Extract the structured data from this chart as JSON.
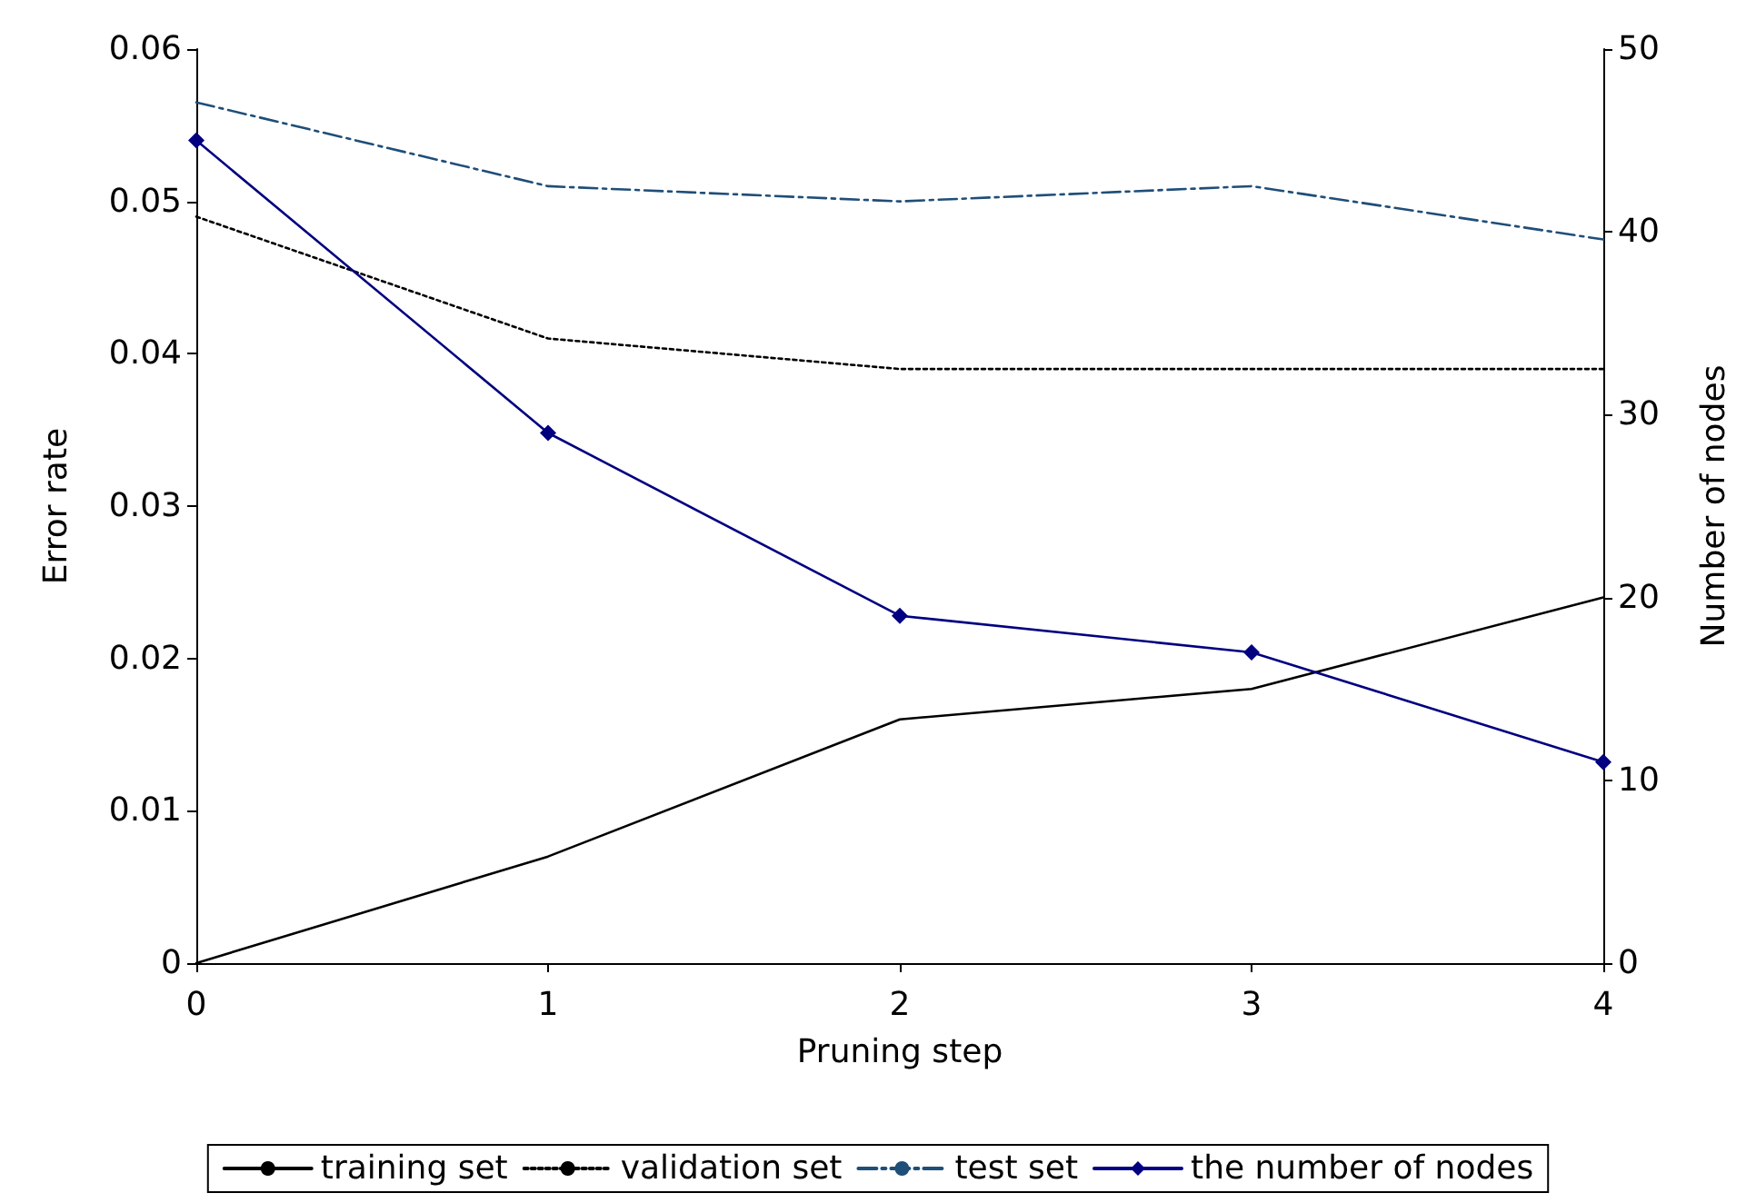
{
  "chart_data": {
    "type": "line",
    "xlabel": "Pruning step",
    "ylabel": "Error rate",
    "y2label": "Number of nodes",
    "x": [
      0,
      1,
      2,
      3,
      4
    ],
    "xlim": [
      0,
      4
    ],
    "xticks": [
      0,
      1,
      2,
      3,
      4
    ],
    "ylim": [
      0,
      0.06
    ],
    "yticks": [
      0,
      0.01,
      0.02,
      0.03,
      0.04,
      0.05,
      0.06
    ],
    "y2lim": [
      0,
      50
    ],
    "y2ticks": [
      0,
      10,
      20,
      30,
      40,
      50
    ],
    "grid": false,
    "legend": "bottom",
    "series": [
      {
        "name": "training set",
        "color": "#000000",
        "line_style": "solid",
        "marker": "none",
        "values": [
          0,
          0.007,
          0.016,
          0.018,
          0.024
        ]
      },
      {
        "name": "validation set",
        "color": "#000000",
        "line_style": "dotted",
        "marker": "none",
        "values": [
          0.049,
          0.041,
          0.039,
          0.039,
          0.039
        ]
      },
      {
        "name": "test set",
        "color": "#1f4e79",
        "line_style": "dashdot",
        "marker": "none",
        "values": [
          0.0565,
          0.051,
          0.05,
          0.051,
          0.0475
        ]
      },
      {
        "name": "the number of nodes",
        "color": "#000080",
        "line_style": "solid",
        "marker": "diamond",
        "axis": "y2",
        "values": [
          45,
          29,
          19,
          17,
          11
        ]
      }
    ]
  }
}
